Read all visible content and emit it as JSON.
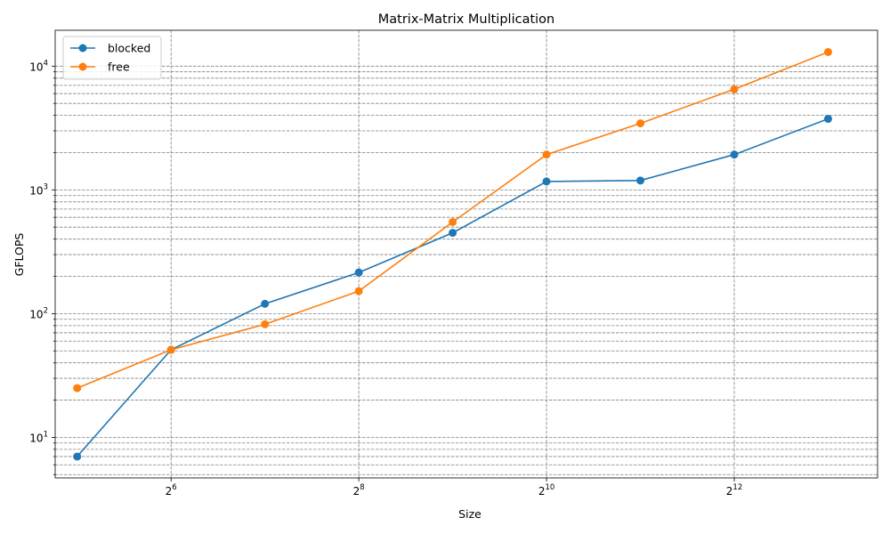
{
  "chart_data": {
    "type": "line",
    "title": "Matrix-Matrix Multiplication",
    "xlabel": "Size",
    "ylabel": "GFLOPS",
    "xscale": "log2",
    "yscale": "log10",
    "xlim": [
      27.2,
      11800
    ],
    "ylim": [
      4.7,
      19500
    ],
    "x": [
      32,
      64,
      128,
      256,
      512,
      1024,
      2048,
      4096,
      8192
    ],
    "x_ticks": [
      {
        "value": 64,
        "base": "2",
        "exp": "6"
      },
      {
        "value": 256,
        "base": "2",
        "exp": "8"
      },
      {
        "value": 1024,
        "base": "2",
        "exp": "10"
      },
      {
        "value": 4096,
        "base": "2",
        "exp": "12"
      }
    ],
    "y_ticks": [
      {
        "value": 10,
        "base": "10",
        "exp": "1"
      },
      {
        "value": 100,
        "base": "10",
        "exp": "2"
      },
      {
        "value": 1000,
        "base": "10",
        "exp": "3"
      },
      {
        "value": 10000,
        "base": "10",
        "exp": "4"
      }
    ],
    "series": [
      {
        "name": "blocked",
        "color": "#1f77b4",
        "values": [
          7,
          51,
          120,
          215,
          450,
          1170,
          1190,
          1930,
          3750
        ]
      },
      {
        "name": "free",
        "color": "#ff7f0e",
        "values": [
          25,
          51,
          82,
          152,
          550,
          1930,
          3450,
          6500,
          13000
        ]
      }
    ],
    "grid": true,
    "legend_position": "top-left"
  }
}
